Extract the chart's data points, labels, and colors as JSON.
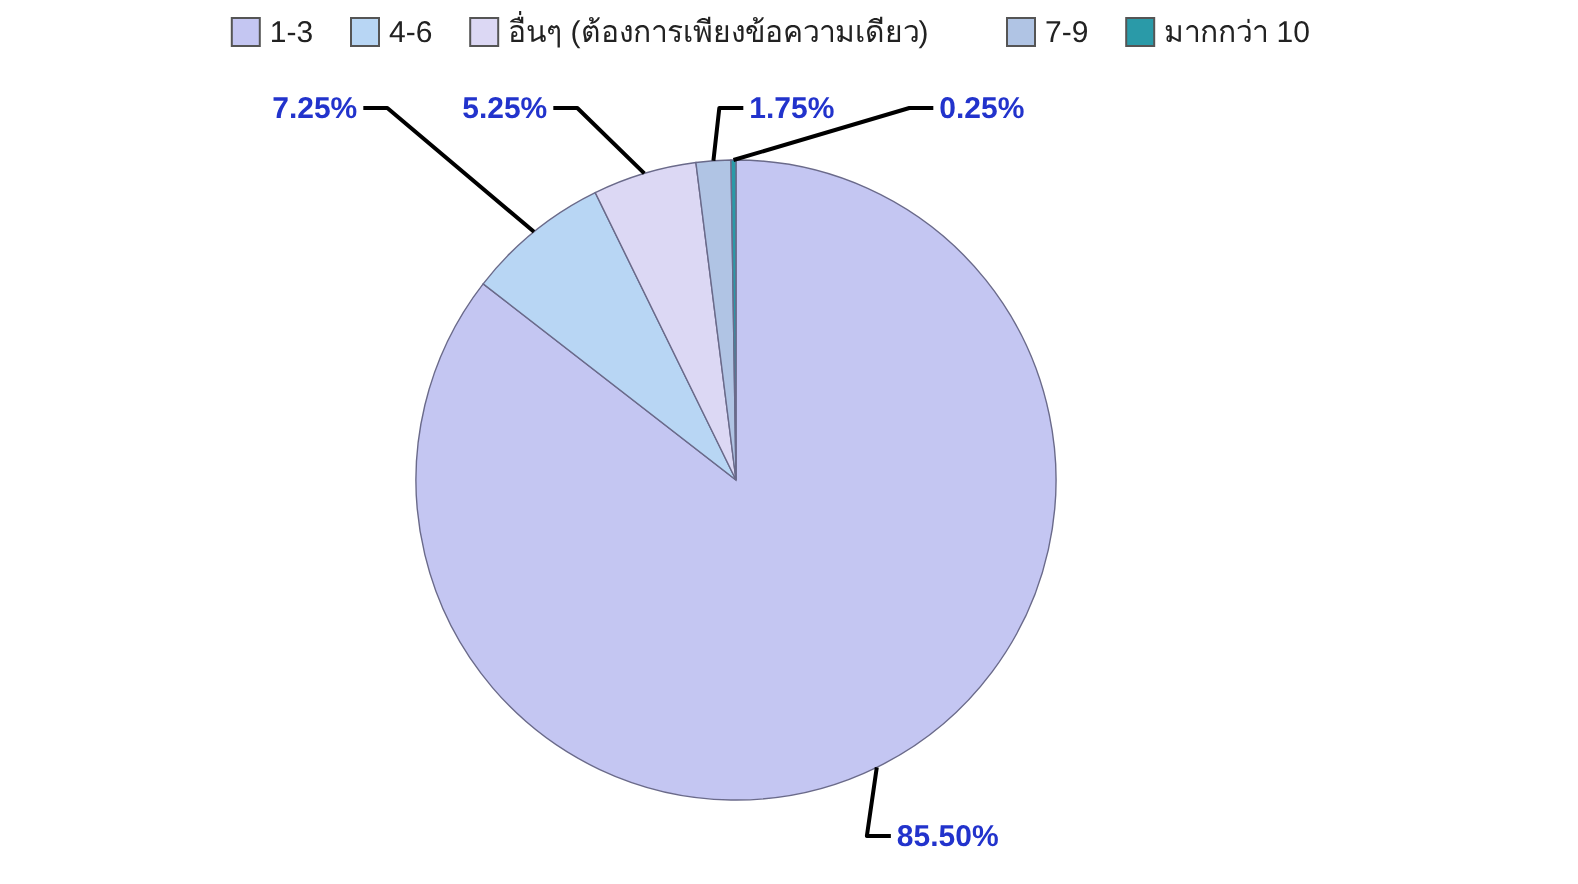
{
  "chart_data": {
    "type": "pie",
    "categories": [
      "1-3",
      "4-6",
      "อื่นๆ (ต้องการเพียงข้อความเดียว)",
      "7-9",
      "มากกว่า 10"
    ],
    "values": [
      85.5,
      7.25,
      5.25,
      1.75,
      0.25
    ],
    "colors": [
      "#c4c6f2",
      "#b8d6f4",
      "#dcd8f4",
      "#b0c4e4",
      "#2a9aa8"
    ],
    "value_labels": [
      "85.50%",
      "7.25%",
      "5.25%",
      "1.75%",
      "0.25%"
    ],
    "legend": "top"
  }
}
